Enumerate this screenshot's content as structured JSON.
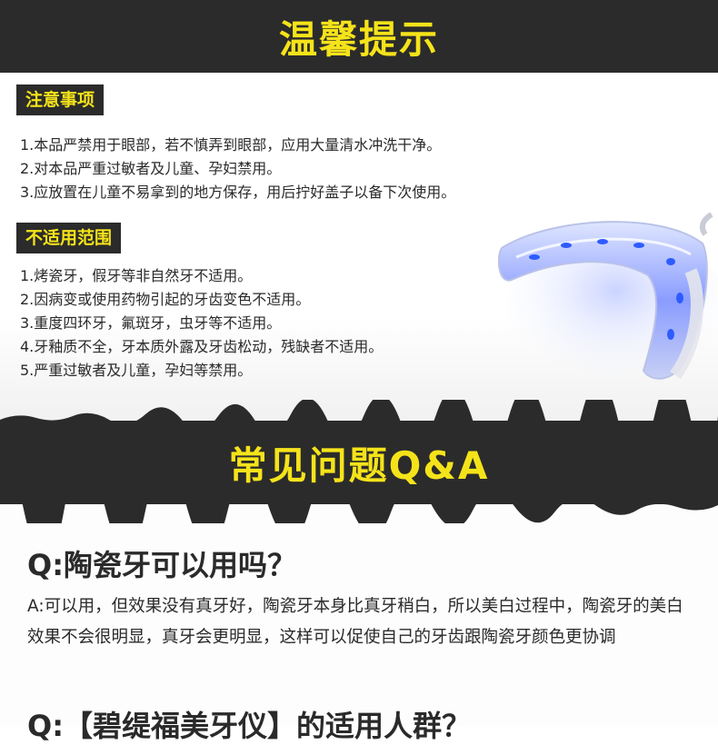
{
  "header": {
    "title": "温馨提示"
  },
  "precautions": {
    "tag": "注意事项",
    "items": [
      "1.本品严禁用于眼部，若不慎弄到眼部，应用大量清水冲洗干净。",
      "2.对本品严重过敏者及儿童、孕妇禁用。",
      "3.应放置在儿童不易拿到的地方保存，用后拧好盖子以备下次使用。"
    ]
  },
  "unsuitable": {
    "tag": "不适用范围",
    "items": [
      "1.烤瓷牙，假牙等非自然牙不适用。",
      "2.因病变或使用药物引起的牙齿变色不适用。",
      "3.重度四环牙，氟斑牙，虫牙等不适用。",
      "4.牙釉质不全，牙本质外露及牙齿松动，残缺者不适用。",
      "5.严重过敏者及儿童，孕妇等禁用。"
    ]
  },
  "faq": {
    "title": "常见问题Q&A",
    "q1": "Q:陶瓷牙可以用吗？",
    "a1": "A:可以用，但效果没有真牙好，陶瓷牙本身比真牙稍白，所以美白过程中，陶瓷牙的美白效果不会很明显，真牙会更明显，这样可以促使自己的牙齿跟陶瓷牙颜色更协调",
    "q2": "Q:【碧缇福美牙仪】的适用人群？"
  },
  "colors": {
    "banner": "#2b2b2b",
    "accent": "#f5e31a",
    "text": "#2a2a2a"
  },
  "icons": {
    "device": "led-teeth-whitening-tray-image"
  }
}
